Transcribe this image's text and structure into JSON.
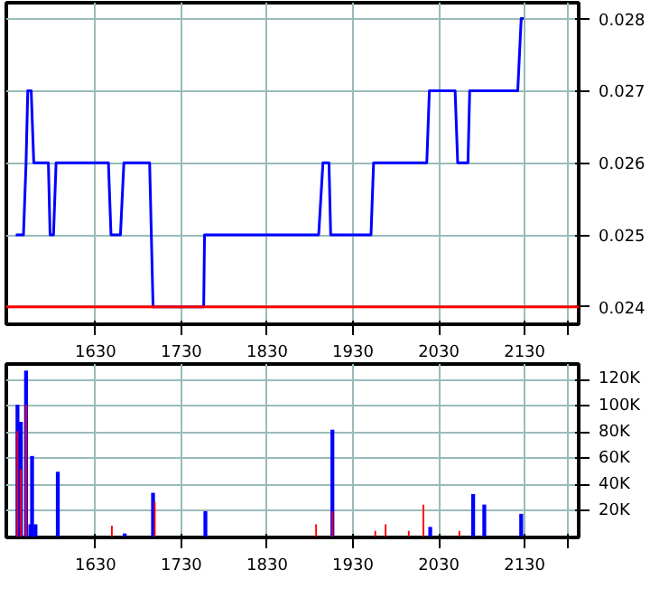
{
  "chart_data": [
    {
      "type": "line",
      "xlim": [
        1526,
        2193
      ],
      "ylim": [
        0.02376,
        0.02822
      ],
      "xticks": [
        1630,
        1730,
        1830,
        1930,
        2030,
        2130,
        {
          "value": 2180,
          "label": null
        }
      ],
      "yticks": [
        0.024,
        0.025,
        0.026,
        0.027,
        0.028
      ],
      "grid": true,
      "series": [
        {
          "color": "#0000ff",
          "x": [
            1537,
            1546,
            1549,
            1551,
            1555,
            1558,
            1575,
            1577,
            1581,
            1584,
            1645,
            1648,
            1659,
            1663,
            1693,
            1697,
            1756,
            1757,
            1890,
            1895,
            1902,
            1904,
            1951,
            1954,
            2016,
            2019,
            2049,
            2052,
            2064,
            2066,
            2122,
            2126,
            2129
          ],
          "values": [
            0.025,
            0.025,
            0.026,
            0.027,
            0.027,
            0.026,
            0.026,
            0.025,
            0.025,
            0.026,
            0.026,
            0.025,
            0.025,
            0.026,
            0.026,
            0.024,
            0.024,
            0.025,
            0.025,
            0.026,
            0.026,
            0.025,
            0.025,
            0.026,
            0.026,
            0.027,
            0.027,
            0.026,
            0.026,
            0.027,
            0.027,
            0.028,
            0.028
          ]
        }
      ],
      "ref_lines": [
        {
          "axis": "y",
          "value": 0.024,
          "color": "#ff0000"
        }
      ]
    },
    {
      "type": "bar",
      "xlim": [
        1526,
        2193
      ],
      "ylim": [
        0,
        132000
      ],
      "xticks": [
        1630,
        1730,
        1830,
        1930,
        2030,
        2130,
        {
          "value": 2180,
          "label": null
        }
      ],
      "yticks": [
        {
          "value": 20000,
          "label": "20K"
        },
        {
          "value": 40000,
          "label": "40K"
        },
        {
          "value": 60000,
          "label": "60K"
        },
        {
          "value": 80000,
          "label": "80K"
        },
        {
          "value": 100000,
          "label": "100K"
        },
        {
          "value": 120000,
          "label": "120K"
        }
      ],
      "grid": true,
      "series": [
        {
          "color": "#0000ff",
          "x": [
            1539,
            1543,
            1549,
            1554,
            1556,
            1560,
            1586,
            1664,
            1697,
            1758,
            1906,
            2020,
            2070,
            2083,
            2126
          ],
          "values": [
            101000,
            88000,
            127000,
            10000,
            62000,
            10000,
            50000,
            3000,
            34000,
            20000,
            82000,
            8000,
            33000,
            25000,
            18000
          ]
        },
        {
          "color": "#ff0000",
          "x": [
            1539,
            1543,
            1549,
            1649,
            1699,
            1887,
            1906,
            1956,
            1968,
            1995,
            2012,
            2054
          ],
          "values": [
            81000,
            52000,
            101000,
            9000,
            27000,
            10000,
            20000,
            5000,
            10000,
            5000,
            25000,
            5000
          ]
        }
      ]
    }
  ]
}
